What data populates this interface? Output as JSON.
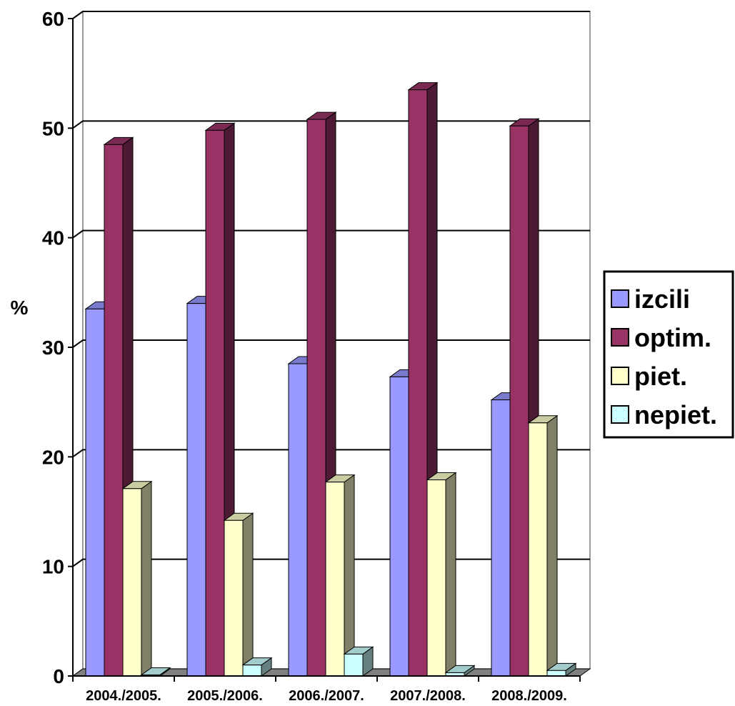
{
  "chart_data": {
    "type": "bar",
    "style": "3d-clustered-column",
    "categories": [
      "2004./2005.",
      "2005./2006.",
      "2006./2007.",
      "2007./2008.",
      "2008./2009."
    ],
    "series": [
      {
        "name": "izcili",
        "color": "#9999FF",
        "values": [
          33.5,
          34.0,
          28.5,
          27.3,
          25.2
        ]
      },
      {
        "name": "optim.",
        "color": "#993366",
        "values": [
          48.5,
          49.8,
          50.8,
          53.5,
          50.2
        ]
      },
      {
        "name": "piet.",
        "color": "#FFFFCC",
        "values": [
          17.1,
          14.2,
          17.7,
          17.9,
          23.1
        ]
      },
      {
        "name": "nepiet.",
        "color": "#CCFFFF",
        "values": [
          0.1,
          1.0,
          2.0,
          0.3,
          0.5
        ]
      }
    ],
    "title": "",
    "xlabel": "",
    "ylabel": "%",
    "ylim": [
      0,
      60
    ],
    "yticks": [
      0,
      10,
      20,
      30,
      40,
      50,
      60
    ],
    "grid": true,
    "legend": "right"
  }
}
